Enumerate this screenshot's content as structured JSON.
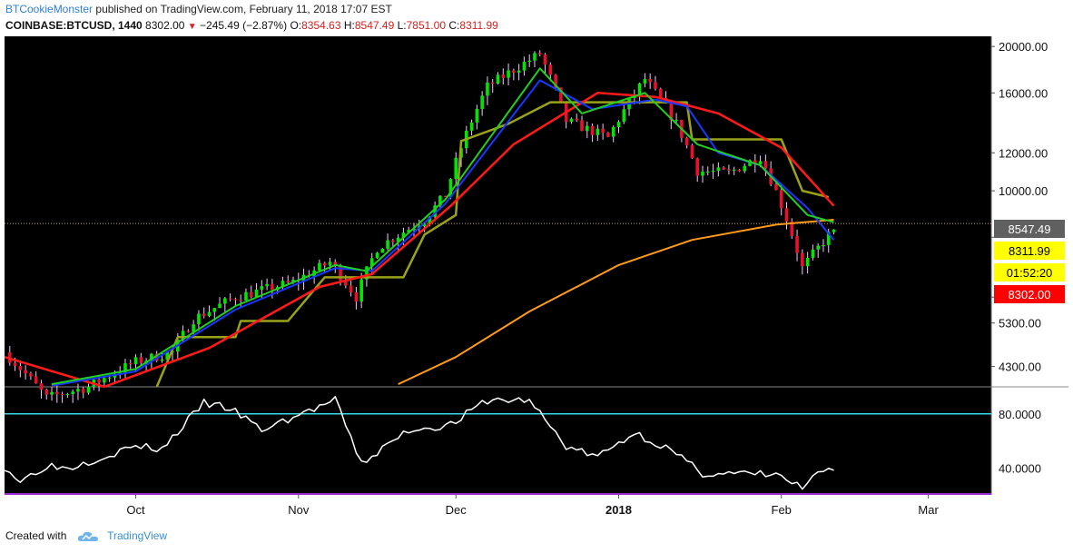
{
  "header": {
    "author": "BTCookieMonster",
    "published_text": "published on TradingView.com, February 11, 2018 17:07 EST",
    "symbol": "COINBASE:BTCUSD, 1440",
    "last": "8302.00",
    "change": "−245.49 (−2.87%)",
    "o_label": "O:",
    "o_value": "8354.63",
    "h_label": "H:",
    "h_value": "8547.49",
    "l_label": "L:",
    "l_value": "7851.00",
    "c_label": "C:",
    "c_value": "8311.99"
  },
  "footer": {
    "created_with": "Created with",
    "brand": "TradingView"
  },
  "colors": {
    "background": "#000000",
    "up_candle": "#00e600",
    "down_candle": "#e8112d",
    "ema_fast": "#22d022",
    "ema_blue": "#1638ff",
    "ma_red": "#ff1a1a",
    "ma_orange": "#ff9a1a",
    "trail_olive": "#9aa21a",
    "rsi_line": "#ffffff",
    "rsi_upper": "#3ad9e8",
    "rsi_lower": "#9b2bd6",
    "price_line": "#c8a040"
  },
  "chart_data": [
    {
      "type": "candlestick",
      "scale": "log",
      "ylim": [
        3900,
        21000
      ],
      "y_ticks": [
        20000,
        16000,
        12000,
        10000,
        8000,
        6000,
        5300,
        4300
      ],
      "y_tick_labels": [
        "20000.00",
        "16000.00",
        "12000.00",
        "10000.00",
        "",
        "",
        "5300.00",
        "4300.00"
      ],
      "x_labels": [
        "Oct",
        "Nov",
        "Dec",
        "2018",
        "Feb",
        "Mar"
      ],
      "x_label_dates": [
        "2017-10-01",
        "2017-11-01",
        "2017-12-01",
        "2018-01-01",
        "2018-02-01",
        "2018-03-01"
      ],
      "x_range": [
        "2017-09-06",
        "2018-03-13"
      ],
      "last_date": "2018-02-11",
      "close_anchors": [
        {
          "date": "2017-09-06",
          "close": 4600
        },
        {
          "date": "2017-09-14",
          "close": 3700
        },
        {
          "date": "2017-09-22",
          "close": 3900
        },
        {
          "date": "2017-10-01",
          "close": 4400
        },
        {
          "date": "2017-10-08",
          "close": 4600
        },
        {
          "date": "2017-10-12",
          "close": 5400
        },
        {
          "date": "2017-10-20",
          "close": 6000
        },
        {
          "date": "2017-10-31",
          "close": 6450
        },
        {
          "date": "2017-11-07",
          "close": 7100
        },
        {
          "date": "2017-11-12",
          "close": 6000
        },
        {
          "date": "2017-11-16",
          "close": 7600
        },
        {
          "date": "2017-11-25",
          "close": 8700
        },
        {
          "date": "2017-11-29",
          "close": 9800
        },
        {
          "date": "2017-12-07",
          "close": 16500
        },
        {
          "date": "2017-12-17",
          "close": 19300
        },
        {
          "date": "2017-12-22",
          "close": 14000
        },
        {
          "date": "2017-12-30",
          "close": 12900
        },
        {
          "date": "2018-01-06",
          "close": 17100
        },
        {
          "date": "2018-01-12",
          "close": 13800
        },
        {
          "date": "2018-01-16",
          "close": 11000
        },
        {
          "date": "2018-01-22",
          "close": 10900
        },
        {
          "date": "2018-01-28",
          "close": 11800
        },
        {
          "date": "2018-02-05",
          "close": 6900
        },
        {
          "date": "2018-02-11",
          "close": 8302
        }
      ],
      "lines": {
        "ema_fast": [
          {
            "date": "2017-09-15",
            "value": 3950
          },
          {
            "date": "2017-10-01",
            "value": 4250
          },
          {
            "date": "2017-10-20",
            "value": 5750
          },
          {
            "date": "2017-11-08",
            "value": 7000
          },
          {
            "date": "2017-11-14",
            "value": 6800
          },
          {
            "date": "2017-11-29",
            "value": 9600
          },
          {
            "date": "2017-12-17",
            "value": 18000
          },
          {
            "date": "2017-12-25",
            "value": 14500
          },
          {
            "date": "2018-01-06",
            "value": 16000
          },
          {
            "date": "2018-01-16",
            "value": 12500
          },
          {
            "date": "2018-01-28",
            "value": 11300
          },
          {
            "date": "2018-02-06",
            "value": 8900
          },
          {
            "date": "2018-02-11",
            "value": 8600
          }
        ],
        "ema_blue": [
          {
            "date": "2017-09-15",
            "value": 3920
          },
          {
            "date": "2017-10-01",
            "value": 4200
          },
          {
            "date": "2017-10-20",
            "value": 5650
          },
          {
            "date": "2017-11-08",
            "value": 6900
          },
          {
            "date": "2017-11-15",
            "value": 6800
          },
          {
            "date": "2017-11-29",
            "value": 9400
          },
          {
            "date": "2017-12-17",
            "value": 17000
          },
          {
            "date": "2017-12-27",
            "value": 14800
          },
          {
            "date": "2018-01-08",
            "value": 15500
          },
          {
            "date": "2018-01-14",
            "value": 15000
          },
          {
            "date": "2018-01-20",
            "value": 12000
          },
          {
            "date": "2018-01-28",
            "value": 11300
          },
          {
            "date": "2018-02-06",
            "value": 9200
          },
          {
            "date": "2018-02-11",
            "value": 7900
          }
        ],
        "ma_red": [
          {
            "date": "2017-09-06",
            "value": 4500
          },
          {
            "date": "2017-09-25",
            "value": 3900
          },
          {
            "date": "2017-10-15",
            "value": 4700
          },
          {
            "date": "2017-11-05",
            "value": 6300
          },
          {
            "date": "2017-11-15",
            "value": 6700
          },
          {
            "date": "2017-11-30",
            "value": 9300
          },
          {
            "date": "2017-12-12",
            "value": 12500
          },
          {
            "date": "2017-12-28",
            "value": 16000
          },
          {
            "date": "2018-01-08",
            "value": 15700
          },
          {
            "date": "2018-01-20",
            "value": 14500
          },
          {
            "date": "2018-02-01",
            "value": 12300
          },
          {
            "date": "2018-02-11",
            "value": 9300
          }
        ],
        "ma_orange": [
          {
            "date": "2017-11-20",
            "value": 3950
          },
          {
            "date": "2017-12-01",
            "value": 4500
          },
          {
            "date": "2017-12-15",
            "value": 5600
          },
          {
            "date": "2018-01-01",
            "value": 7000
          },
          {
            "date": "2018-01-15",
            "value": 7900
          },
          {
            "date": "2018-01-31",
            "value": 8500
          },
          {
            "date": "2018-02-11",
            "value": 8700
          }
        ],
        "trail_olive": [
          {
            "date": "2017-10-05",
            "value": 3900
          },
          {
            "date": "2017-10-09",
            "value": 4950
          },
          {
            "date": "2017-10-20",
            "value": 4950
          },
          {
            "date": "2017-10-21",
            "value": 5350
          },
          {
            "date": "2017-10-30",
            "value": 5350
          },
          {
            "date": "2017-11-06",
            "value": 6600
          },
          {
            "date": "2017-11-21",
            "value": 6600
          },
          {
            "date": "2017-11-25",
            "value": 8100
          },
          {
            "date": "2017-12-01",
            "value": 8900
          },
          {
            "date": "2017-12-02",
            "value": 12700
          },
          {
            "date": "2017-12-11",
            "value": 13800
          },
          {
            "date": "2017-12-19",
            "value": 15300
          },
          {
            "date": "2018-01-14",
            "value": 15300
          },
          {
            "date": "2018-01-15",
            "value": 12800
          },
          {
            "date": "2018-02-01",
            "value": 12800
          },
          {
            "date": "2018-02-05",
            "value": 10000
          },
          {
            "date": "2018-02-10",
            "value": 9700
          }
        ]
      },
      "price_tags": [
        {
          "label": "8547.49",
          "value": 8547.49,
          "bg": "#606060",
          "fg": "#ffffff"
        },
        {
          "label": "8311.99",
          "value": 8311.99,
          "bg": "#ffff00",
          "fg": "#000000"
        },
        {
          "label": "01:52:20",
          "value": null,
          "bg": "#ffff00",
          "fg": "#000000"
        },
        {
          "label": "8302.00",
          "value": 8302.0,
          "bg": "#ff0000",
          "fg": "#ffffff"
        }
      ]
    },
    {
      "type": "line",
      "series": [
        {
          "values_anchor": [
            {
              "date": "2017-09-06",
              "value": 41
            },
            {
              "date": "2017-09-09",
              "value": 30
            },
            {
              "date": "2017-09-14",
              "value": 42
            },
            {
              "date": "2017-09-18",
              "value": 40
            },
            {
              "date": "2017-10-01",
              "value": 56
            },
            {
              "date": "2017-10-06",
              "value": 54
            },
            {
              "date": "2017-10-14",
              "value": 88
            },
            {
              "date": "2017-10-19",
              "value": 84
            },
            {
              "date": "2017-10-25",
              "value": 68
            },
            {
              "date": "2017-11-08",
              "value": 90
            },
            {
              "date": "2017-11-13",
              "value": 43
            },
            {
              "date": "2017-11-22",
              "value": 68
            },
            {
              "date": "2017-11-30",
              "value": 72
            },
            {
              "date": "2017-12-07",
              "value": 90
            },
            {
              "date": "2017-12-15",
              "value": 90
            },
            {
              "date": "2017-12-22",
              "value": 56
            },
            {
              "date": "2017-12-28",
              "value": 48
            },
            {
              "date": "2018-01-04",
              "value": 66
            },
            {
              "date": "2018-01-10",
              "value": 55
            },
            {
              "date": "2018-01-17",
              "value": 36
            },
            {
              "date": "2018-01-31",
              "value": 35
            },
            {
              "date": "2018-02-05",
              "value": 25
            },
            {
              "date": "2018-02-09",
              "value": 38
            },
            {
              "date": "2018-02-11",
              "value": 36
            }
          ]
        }
      ],
      "ylim": [
        20,
        100
      ],
      "y_tick_labels": [
        "80.0000",
        "40.0000"
      ],
      "bands": [
        80,
        20
      ]
    }
  ]
}
